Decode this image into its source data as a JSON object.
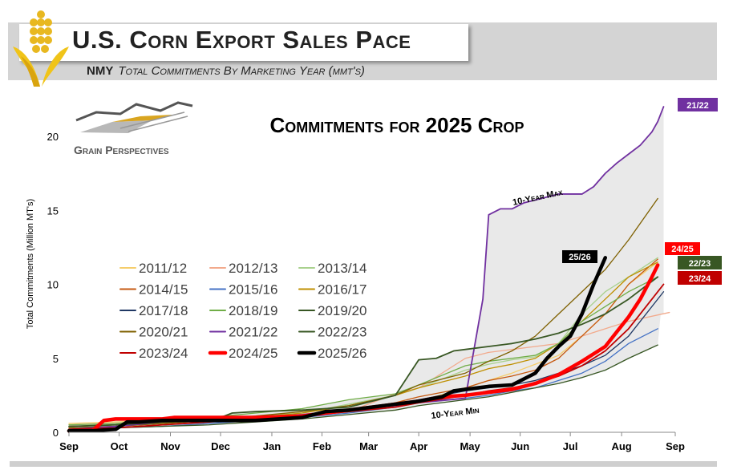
{
  "header": {
    "title": "U.S. Corn Export Sales Pace",
    "subtitle_lead": "NMY",
    "subtitle_rest": "Total Commitments By Marketing Year (mmt's)"
  },
  "logo": {
    "text": "Grain Perspectives",
    "icon": "grain-perspectives-logo"
  },
  "chart_data": {
    "type": "line",
    "title": "Commitments for 2025 Crop",
    "xlabel": "",
    "ylabel": "Total Commitments (Million MT's)",
    "ylim": [
      0,
      22
    ],
    "yticks": [
      0,
      5,
      10,
      15,
      20
    ],
    "xlim": [
      0,
      52
    ],
    "xticks": [
      {
        "label": "Sep",
        "x": 0
      },
      {
        "label": "Oct",
        "x": 4.3
      },
      {
        "label": "Nov",
        "x": 8.7
      },
      {
        "label": "Dec",
        "x": 13
      },
      {
        "label": "Jan",
        "x": 17.4
      },
      {
        "label": "Feb",
        "x": 21.7
      },
      {
        "label": "Mar",
        "x": 25.7
      },
      {
        "label": "Apr",
        "x": 30
      },
      {
        "label": "May",
        "x": 34.4
      },
      {
        "label": "Jun",
        "x": 38.7
      },
      {
        "label": "Jul",
        "x": 43
      },
      {
        "label": "Aug",
        "x": 47.4
      },
      {
        "label": "Sep",
        "x": 52
      }
    ],
    "range_band": {
      "max_label": "10-Year Max",
      "min_label": "10-Year Min"
    },
    "series": [
      {
        "name": "2011/12",
        "color": "#f5cd6b",
        "width": 1.3,
        "x": [
          0,
          4,
          8,
          12,
          16,
          20,
          24,
          28,
          30,
          34,
          36,
          38,
          40,
          42,
          44,
          46,
          48,
          50.5
        ],
        "y": [
          0.6,
          0.7,
          0.8,
          0.9,
          1.0,
          1.1,
          1.4,
          1.8,
          2.1,
          3.0,
          3.5,
          4.0,
          4.6,
          5.2,
          6.5,
          8.0,
          10.0,
          11.5
        ]
      },
      {
        "name": "2012/13",
        "color": "#f2aa8c",
        "width": 1.3,
        "x": [
          0,
          4,
          8,
          12,
          16,
          20,
          24,
          28,
          30,
          34,
          36,
          38,
          40,
          42,
          44,
          46,
          48,
          51.5
        ],
        "y": [
          0.5,
          0.6,
          0.7,
          0.8,
          0.9,
          1.0,
          1.4,
          2.6,
          3.0,
          5.0,
          5.4,
          5.6,
          5.8,
          6.0,
          6.5,
          7.0,
          7.5,
          8.1
        ]
      },
      {
        "name": "2013/14",
        "color": "#a9d18e",
        "width": 1.3,
        "x": [
          0,
          4,
          8,
          12,
          16,
          20,
          24,
          28,
          30,
          34,
          36,
          38,
          40,
          42,
          44,
          46,
          48,
          50.5
        ],
        "y": [
          0.4,
          0.5,
          0.7,
          0.9,
          1.1,
          1.3,
          1.9,
          2.5,
          3.0,
          4.2,
          4.6,
          4.9,
          5.1,
          6.0,
          8.0,
          9.5,
          10.5,
          11.8
        ]
      },
      {
        "name": "2014/15",
        "color": "#c65911",
        "width": 1.3,
        "x": [
          0,
          4,
          8,
          12,
          16,
          20,
          24,
          28,
          30,
          34,
          36,
          38,
          40,
          42,
          44,
          46,
          48,
          50.5
        ],
        "y": [
          0.3,
          0.4,
          0.6,
          0.8,
          1.0,
          1.2,
          1.5,
          2.0,
          2.4,
          3.0,
          3.5,
          3.8,
          4.2,
          5.0,
          6.5,
          8.0,
          10.0,
          11.7
        ]
      },
      {
        "name": "2015/16",
        "color": "#4472c4",
        "width": 1.3,
        "x": [
          0,
          4,
          8,
          12,
          16,
          20,
          24,
          28,
          30,
          34,
          36,
          38,
          40,
          42,
          44,
          46,
          48,
          50.5
        ],
        "y": [
          0.2,
          0.3,
          0.4,
          0.6,
          0.8,
          1.0,
          1.3,
          1.7,
          2.0,
          2.3,
          2.5,
          2.8,
          3.0,
          3.5,
          4.0,
          4.8,
          6.0,
          7.0
        ]
      },
      {
        "name": "2016/17",
        "color": "#bf8f00",
        "width": 1.3,
        "x": [
          0,
          4,
          8,
          12,
          16,
          20,
          24,
          28,
          30,
          34,
          36,
          38,
          40,
          42,
          44,
          46,
          48,
          50.5
        ],
        "y": [
          0.4,
          0.5,
          0.6,
          0.8,
          1.0,
          1.3,
          1.8,
          2.5,
          3.0,
          3.8,
          4.3,
          4.6,
          5.0,
          6.0,
          7.5,
          9.0,
          10.5,
          11.5
        ]
      },
      {
        "name": "2017/18",
        "color": "#203864",
        "width": 1.3,
        "x": [
          0,
          4,
          8,
          12,
          16,
          20,
          24,
          28,
          30,
          34,
          36,
          38,
          40,
          42,
          44,
          46,
          48,
          51
        ],
        "y": [
          0.2,
          0.3,
          0.5,
          0.7,
          0.9,
          1.1,
          1.5,
          1.9,
          2.2,
          2.8,
          3.0,
          3.2,
          3.5,
          4.0,
          4.5,
          5.2,
          6.5,
          9.5
        ]
      },
      {
        "name": "2018/19",
        "color": "#70ad47",
        "width": 1.3,
        "x": [
          0,
          4,
          8,
          12,
          16,
          20,
          24,
          28,
          30,
          34,
          36,
          38,
          40,
          42,
          44,
          46,
          48,
          50.5
        ],
        "y": [
          0.5,
          0.6,
          0.8,
          1.0,
          1.3,
          1.6,
          2.2,
          2.6,
          3.2,
          4.5,
          4.8,
          5.0,
          5.2,
          6.0,
          7.5,
          8.5,
          9.5,
          10.5
        ]
      },
      {
        "name": "2019/20",
        "color": "#375623",
        "width": 1.3,
        "x": [
          0,
          4,
          8,
          12,
          16,
          20,
          24,
          28,
          30,
          34,
          36,
          38,
          40,
          42,
          44,
          46,
          48,
          50.5
        ],
        "y": [
          0.2,
          0.3,
          0.4,
          0.5,
          0.7,
          0.9,
          1.2,
          1.5,
          1.8,
          2.2,
          2.4,
          2.7,
          3.0,
          3.3,
          3.7,
          4.2,
          5.0,
          5.9
        ]
      },
      {
        "name": "2020/21",
        "color": "#7f6000",
        "width": 1.3,
        "x": [
          0,
          4,
          8,
          12,
          16,
          20,
          24,
          28,
          30,
          34,
          36,
          38,
          40,
          42,
          44,
          46,
          48,
          50.5
        ],
        "y": [
          0.3,
          0.4,
          0.6,
          0.8,
          1.1,
          1.4,
          1.8,
          2.5,
          3.2,
          4.0,
          4.8,
          5.5,
          6.5,
          8.0,
          9.5,
          11.0,
          13.0,
          15.8
        ]
      },
      {
        "name": "2021/22",
        "color": "#7030a0",
        "width": 1.8,
        "x": [
          0,
          4,
          8,
          12,
          16,
          20,
          24,
          28,
          30,
          34,
          35.5,
          36,
          37,
          38,
          39,
          40,
          41,
          42,
          43,
          44,
          45,
          46,
          47,
          48,
          49,
          50,
          50.5,
          51
        ],
        "y": [
          0.2,
          0.4,
          0.7,
          0.9,
          1.0,
          1.2,
          1.5,
          1.8,
          2.0,
          2.3,
          9.0,
          14.7,
          15.1,
          15.1,
          15.5,
          15.7,
          15.9,
          16.1,
          16.1,
          16.1,
          16.6,
          17.5,
          18.2,
          18.8,
          19.4,
          20.3,
          21.0,
          22.0
        ]
      },
      {
        "name": "2022/23",
        "color": "#385723",
        "width": 1.8,
        "x": [
          0,
          4,
          8,
          12,
          13,
          14,
          16,
          20,
          24,
          28,
          30,
          31.5,
          33,
          34,
          36,
          38,
          40,
          42,
          44,
          46,
          48,
          50.5
        ],
        "y": [
          0.4,
          0.5,
          0.7,
          0.8,
          1.0,
          1.3,
          1.4,
          1.5,
          1.7,
          2.5,
          4.9,
          5.0,
          5.5,
          5.6,
          5.8,
          6.0,
          6.3,
          6.7,
          7.3,
          8.0,
          9.0,
          10.5
        ]
      },
      {
        "name": "2023/24",
        "color": "#c00000",
        "width": 1.8,
        "x": [
          0,
          4,
          8,
          12,
          16,
          20,
          24,
          28,
          30,
          34,
          36,
          38,
          40,
          42,
          44,
          46,
          48,
          51
        ],
        "y": [
          0.2,
          0.3,
          0.5,
          0.7,
          0.9,
          1.1,
          1.4,
          1.7,
          2.0,
          2.5,
          2.8,
          3.0,
          3.3,
          3.8,
          4.5,
          5.5,
          7.0,
          10.0
        ]
      },
      {
        "name": "2024/25",
        "color": "#ff0000",
        "width": 4.5,
        "x": [
          0,
          2,
          3,
          4,
          6,
          8,
          9,
          12,
          16,
          20,
          24,
          28,
          30,
          32,
          34,
          36,
          38,
          40,
          42,
          44,
          46,
          47,
          48,
          49,
          50,
          50.5
        ],
        "y": [
          0.1,
          0.1,
          0.8,
          0.9,
          0.9,
          0.9,
          1.0,
          1.0,
          1.0,
          1.1,
          1.5,
          1.9,
          2.1,
          2.4,
          2.5,
          2.7,
          2.9,
          3.3,
          3.9,
          4.8,
          5.8,
          6.8,
          7.8,
          9.0,
          10.5,
          11.3
        ]
      },
      {
        "name": "2025/26",
        "color": "#000000",
        "width": 4.5,
        "x": [
          0,
          2,
          4,
          5,
          6,
          8,
          12,
          16,
          18,
          20,
          22,
          24,
          26,
          28,
          30,
          32,
          33,
          34,
          36,
          38,
          39,
          40,
          41,
          42,
          43,
          44,
          45,
          46
        ],
        "y": [
          0.1,
          0.1,
          0.2,
          0.7,
          0.7,
          0.8,
          0.8,
          0.8,
          0.9,
          1.0,
          1.4,
          1.5,
          1.7,
          1.9,
          2.1,
          2.4,
          2.8,
          2.9,
          3.1,
          3.2,
          3.6,
          4.0,
          5.0,
          5.8,
          6.5,
          8.0,
          10.0,
          11.8
        ]
      }
    ],
    "end_labels": [
      {
        "text": "21/22",
        "bg": "#7030a0"
      },
      {
        "text": "25/26",
        "bg": "#000000"
      },
      {
        "text": "24/25",
        "bg": "#ff0000"
      },
      {
        "text": "22/23",
        "bg": "#385723"
      },
      {
        "text": "23/24",
        "bg": "#c00000"
      }
    ],
    "legend": [
      "2011/12",
      "2012/13",
      "2013/14",
      "2014/15",
      "2015/16",
      "2016/17",
      "2017/18",
      "2018/19",
      "2019/20",
      "2020/21",
      "2021/22",
      "2022/23",
      "2023/24",
      "2024/25",
      "2025/26"
    ]
  }
}
